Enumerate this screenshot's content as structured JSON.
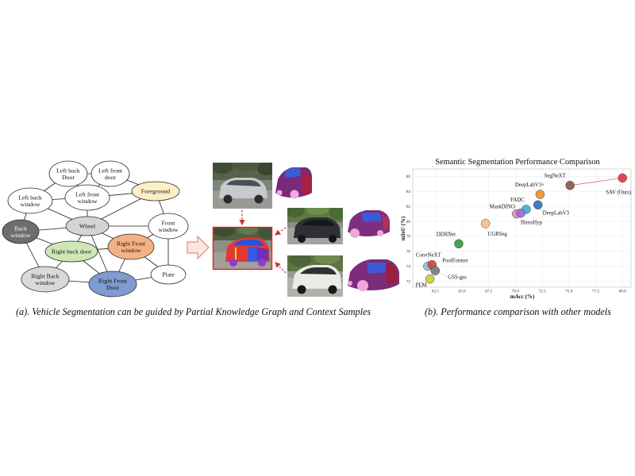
{
  "figure": {
    "caption_a": "(a). Vehicle Segmentation can be guided by Partial Knowledge Graph and Context Samples",
    "caption_b": "(b). Performance comparison with other models"
  },
  "graph": {
    "nodes": [
      {
        "lines": [
          "Left back",
          "Door"
        ],
        "fill": "#ffffff"
      },
      {
        "lines": [
          "Left front",
          "door"
        ],
        "fill": "#ffffff"
      },
      {
        "lines": [
          "Left back",
          "window"
        ],
        "fill": "#ffffff"
      },
      {
        "lines": [
          "Left front",
          "window"
        ],
        "fill": "#ffffff"
      },
      {
        "lines": [
          "Foreground"
        ],
        "fill": "#fcefc4"
      },
      {
        "lines": [
          "Back",
          "window"
        ],
        "fill": "#6e6e6e",
        "text_color": "#ffffff"
      },
      {
        "lines": [
          "Wheel"
        ],
        "fill": "#d4d4d4"
      },
      {
        "lines": [
          "Front",
          "window"
        ],
        "fill": "#ffffff"
      },
      {
        "lines": [
          "Right back door"
        ],
        "fill": "#cfe6b6"
      },
      {
        "lines": [
          "Right Front",
          "window"
        ],
        "fill": "#f4b184"
      },
      {
        "lines": [
          "Plate"
        ],
        "fill": "#ffffff"
      },
      {
        "lines": [
          "Right Back",
          "window"
        ],
        "fill": "#d9d9d9"
      },
      {
        "lines": [
          "Right Front",
          "Door"
        ],
        "fill": "#7f9bd0"
      }
    ],
    "edges": [
      [
        0,
        1
      ],
      [
        0,
        2
      ],
      [
        0,
        3
      ],
      [
        1,
        3
      ],
      [
        1,
        4
      ],
      [
        2,
        3
      ],
      [
        2,
        5
      ],
      [
        2,
        6
      ],
      [
        3,
        6
      ],
      [
        3,
        4
      ],
      [
        4,
        6
      ],
      [
        4,
        7
      ],
      [
        5,
        6
      ],
      [
        5,
        8
      ],
      [
        5,
        11
      ],
      [
        6,
        7
      ],
      [
        6,
        8
      ],
      [
        6,
        9
      ],
      [
        6,
        12
      ],
      [
        7,
        9
      ],
      [
        7,
        10
      ],
      [
        8,
        9
      ],
      [
        8,
        11
      ],
      [
        8,
        12
      ],
      [
        9,
        10
      ],
      [
        9,
        12
      ],
      [
        11,
        12
      ],
      [
        12,
        10
      ]
    ]
  },
  "chart_data": {
    "type": "scatter",
    "title": "Semantic Segmentation Performance Comparison",
    "xlabel": "mAcc (%)",
    "ylabel": "mIoU (%)",
    "xlim": [
      60.4,
      80.8
    ],
    "ylim": [
      71.2,
      87.0
    ],
    "x_ticks": [
      "62.5",
      "65.0",
      "67.5",
      "70.0",
      "72.5",
      "75.0",
      "77.5",
      "80.0"
    ],
    "y_ticks": [
      "72",
      "74",
      "76",
      "78",
      "80",
      "82",
      "84",
      "86"
    ],
    "grid": true,
    "points": [
      {
        "label": "SAV (Ours)",
        "x": 80.0,
        "y": 85.8,
        "color": "#e03a3e"
      },
      {
        "label": "SegNeXT",
        "x": 75.1,
        "y": 84.8,
        "color": "#8c564b"
      },
      {
        "label": "DeepLabV3+",
        "x": 72.3,
        "y": 83.6,
        "color": "#f28e2b"
      },
      {
        "label": "FADC",
        "x": 71.0,
        "y": 81.6,
        "color": "#42aed1"
      },
      {
        "label": "DeepLabV3",
        "x": 72.1,
        "y": 82.2,
        "color": "#2f73b5"
      },
      {
        "label": "MaskDINO",
        "x": 70.1,
        "y": 81.0,
        "color": "#e78ac3"
      },
      {
        "label": "HieraHyp",
        "x": 70.5,
        "y": 81.1,
        "color": "#9b6fd0"
      },
      {
        "label": "CGRSeg",
        "x": 67.2,
        "y": 79.7,
        "color": "#f7c08a"
      },
      {
        "label": "DDRNet",
        "x": 64.7,
        "y": 77.0,
        "color": "#3a9d3a"
      },
      {
        "label": "ConvNeXT",
        "x": 61.8,
        "y": 74.0,
        "color": "#9cbce0"
      },
      {
        "label": "PoolFormer",
        "x": 62.2,
        "y": 74.2,
        "color": "#c84a3c"
      },
      {
        "label": "GSS-gss",
        "x": 62.5,
        "y": 73.4,
        "color": "#7a7a7a"
      },
      {
        "label": "PEM",
        "x": 62.0,
        "y": 72.3,
        "color": "#c9cc3a"
      }
    ]
  }
}
